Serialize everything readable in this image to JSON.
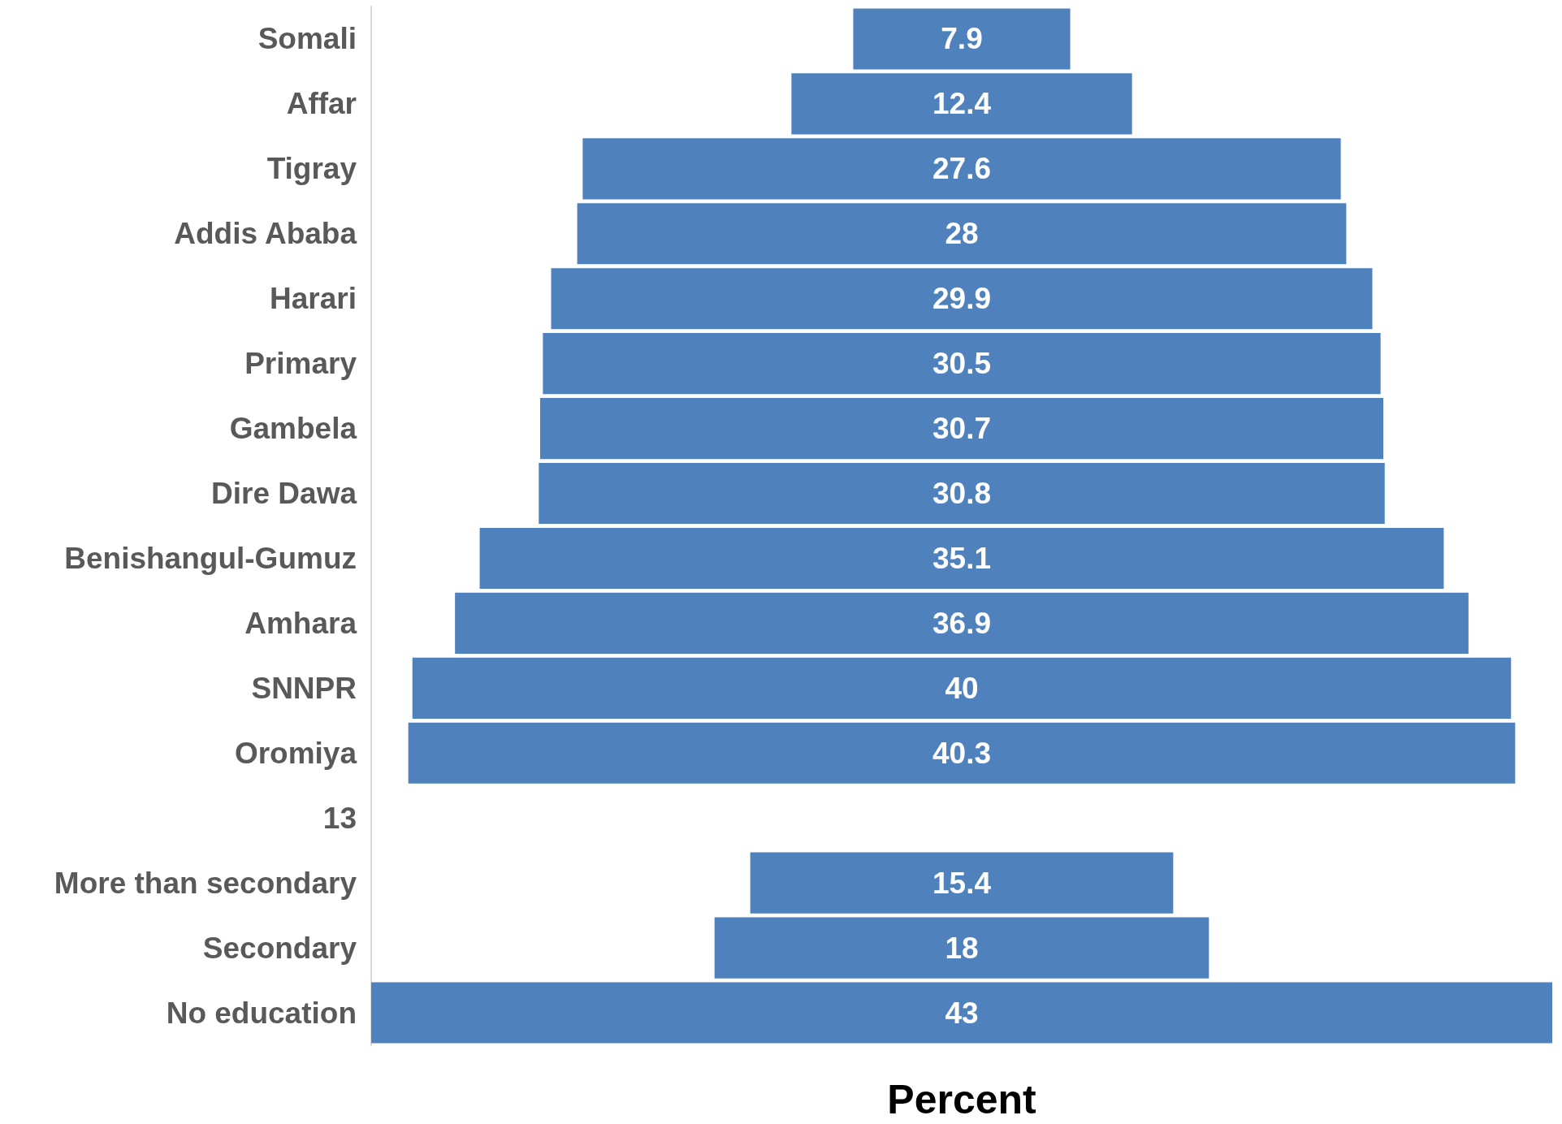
{
  "chart_data": {
    "type": "other",
    "xlabel": "Percent",
    "data_labels": true,
    "color": "#4f81bd",
    "categories": [
      "Somali",
      "Affar",
      "Tigray",
      "Addis Ababa",
      "Harari",
      "Primary",
      "Gambela",
      "Dire Dawa",
      "Benishangul-Gumuz",
      "Amhara",
      "SNNPR",
      "Oromiya",
      "13",
      "More than secondary",
      "Secondary",
      "No education"
    ],
    "values": [
      7.9,
      12.4,
      27.6,
      28,
      29.9,
      30.5,
      30.7,
      30.8,
      35.1,
      36.9,
      40,
      40.3,
      null,
      15.4,
      18,
      43
    ]
  }
}
